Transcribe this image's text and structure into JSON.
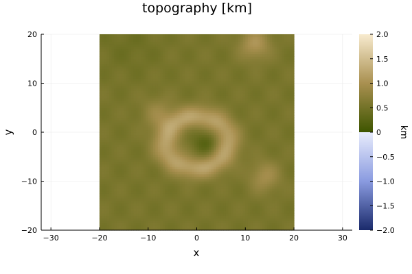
{
  "chart_data": {
    "type": "heatmap",
    "title": "topography [km]",
    "xlabel": "x",
    "ylabel": "y",
    "xlim": [
      -32,
      32
    ],
    "ylim": [
      -20,
      20
    ],
    "data_extent": {
      "x": [
        -20,
        20
      ],
      "y": [
        -20,
        20
      ]
    },
    "x_ticks": [
      -30,
      -20,
      -10,
      0,
      10,
      20,
      30
    ],
    "y_ticks": [
      -20,
      -10,
      0,
      10,
      20
    ],
    "grid": true,
    "colorbar": {
      "label": "km",
      "range": [
        -2.0,
        2.0
      ],
      "ticks": [
        "2.0",
        "1.5",
        "1.0",
        "0.5",
        "0",
        "−0.5",
        "−1.0",
        "−1.5",
        "−2.0"
      ],
      "tick_values": [
        2.0,
        1.5,
        1.0,
        0.5,
        0,
        -0.5,
        -1.0,
        -1.5,
        -2.0
      ],
      "colors": {
        "neg_low": "#1a2a6b",
        "neg_mid": "#8a9be0",
        "neg_high": "#e8ecfc",
        "pos_low": "#3e5500",
        "pos_mid": "#a99050",
        "pos_high": "#f8ebcf"
      }
    },
    "features": [
      {
        "name": "base",
        "x": 0,
        "y": 0,
        "value": 0.55
      },
      {
        "name": "central ring",
        "x": 0,
        "y": -2,
        "value": 1.2
      },
      {
        "name": "central pit",
        "x": 2,
        "y": -2,
        "value": 0.25
      },
      {
        "name": "rim knob NW",
        "x": -8,
        "y": 4,
        "value": 0.85
      },
      {
        "name": "hill N",
        "x": 12,
        "y": 18,
        "value": 1.05
      },
      {
        "name": "hill E",
        "x": 14,
        "y": -9,
        "value": 0.95
      },
      {
        "name": "lowland NW",
        "x": -14,
        "y": 18,
        "value": 0.45
      }
    ]
  }
}
